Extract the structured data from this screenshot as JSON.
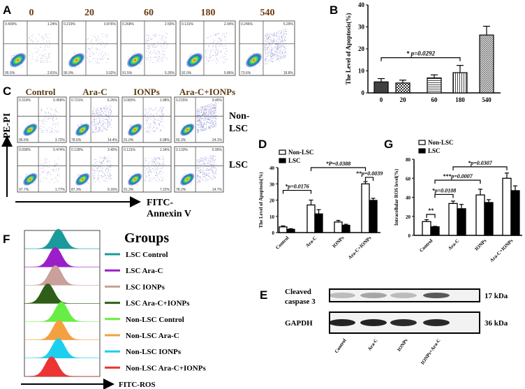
{
  "panel_labels": {
    "a": "A",
    "b": "B",
    "c": "C",
    "d": "D",
    "e": "E",
    "f": "F",
    "g": "G"
  },
  "panel_a": {
    "timepoints": [
      "0",
      "20",
      "60",
      "180",
      "540"
    ],
    "quadrants": [
      [
        "0.409%",
        "1.24%",
        "95.5%",
        "2.81%"
      ],
      [
        "0.219%",
        "0.876%",
        "95.9%",
        "3.02%"
      ],
      [
        "0.268%",
        "2.59%",
        "91.5%",
        "5.26%"
      ],
      [
        "0.131%",
        "2.04%",
        "92.0%",
        "5.86%"
      ],
      [
        "0.246%",
        "5.29%",
        "73.6%",
        "18.8%"
      ]
    ]
  },
  "panel_c": {
    "groups": [
      "Control",
      "Ara-C",
      "IONPs",
      "Ara-C+IONPs"
    ],
    "row_labels": [
      [
        "Non-",
        "LSC"
      ],
      [
        "LSC"
      ]
    ],
    "y_axis_label": "PE-PI",
    "x_axis_label": [
      "FITC-",
      "Annexin V"
    ],
    "quadrants": [
      [
        [
          "0.319%",
          "0.458%",
          "95.5%",
          "3.72%"
        ],
        [
          "0.721%",
          "6.26%",
          "78.6%",
          "14.4%"
        ],
        [
          "0.083%",
          "1.98%",
          "91.0%",
          "6.98%"
        ],
        [
          "0.215%",
          "9.45%",
          "66.3%",
          "24.1%"
        ]
      ],
      [
        [
          "0.099%",
          "0.474%",
          "97.7%",
          "1.77%"
        ],
        [
          "0.139%",
          "3.45%",
          "87.3%",
          "9.16%"
        ],
        [
          "0.131%",
          "1.34%",
          "91.3%",
          "7.22%"
        ],
        [
          "0.133%",
          "6.95%",
          "78.2%",
          "14.7%"
        ]
      ]
    ]
  },
  "panel_e": {
    "rows": [
      {
        "label": [
          "Cleaved",
          "caspase 3"
        ],
        "size": "17 kDa",
        "intensity": [
          0.25,
          0.35,
          0.25,
          0.7
        ]
      },
      {
        "label": [
          "GAPDH"
        ],
        "size": "36 kDa",
        "intensity": [
          0.95,
          0.95,
          0.92,
          0.93
        ]
      }
    ],
    "lanes": [
      "Control",
      "Ara-C",
      "IONPs",
      "IONPs+Ara-C"
    ]
  },
  "panel_f": {
    "legend_title": "Groups",
    "x_axis_label": "FITC-ROS",
    "groups": [
      {
        "name": "LSC Control",
        "color": "#1a9a9a",
        "peak": 0.45
      },
      {
        "name": "LSC Ara-C",
        "color": "#9b1fc8",
        "peak": 0.41
      },
      {
        "name": "LSC IONPs",
        "color": "#c9a09a",
        "peak": 0.41
      },
      {
        "name": "LSC Ara-C+IONPs",
        "color": "#2e5e18",
        "peak": 0.31
      },
      {
        "name": "Non-LSC Control",
        "color": "#66ee44",
        "peak": 0.49
      },
      {
        "name": "Non-LSC Ara-C",
        "color": "#f5a040",
        "peak": 0.46
      },
      {
        "name": "Non-LSC IONPs",
        "color": "#1ccfef",
        "peak": 0.45
      },
      {
        "name": "Non-LSC Ara-C+IONPs",
        "color": "#ee3333",
        "peak": 0.36
      }
    ]
  },
  "chart_data": [
    {
      "id": "B",
      "type": "bar",
      "categories": [
        "0",
        "20",
        "60",
        "180",
        "540"
      ],
      "values": [
        5.0,
        4.5,
        6.8,
        9.2,
        26.3
      ],
      "error": [
        1.5,
        1.3,
        1.4,
        3.3,
        4.0
      ],
      "ylabel": "The Level of Apoptosis(%)",
      "xlabel": "",
      "ylim": [
        0,
        40
      ],
      "yticks": [
        "0",
        "10",
        "20",
        "30",
        "40"
      ],
      "annotations": [
        {
          "from": "0",
          "to": "180",
          "text": "* p=0.0292",
          "y": 16
        }
      ]
    },
    {
      "id": "D",
      "type": "bar",
      "categories": [
        "Control",
        "Ara-C",
        "IONPs",
        "Ara-C+IONPs"
      ],
      "series": [
        {
          "name": "Non-LSC",
          "values": [
            3.5,
            17.0,
            6.5,
            30.0
          ],
          "error": [
            0.6,
            3.0,
            1.0,
            1.4
          ]
        },
        {
          "name": "LSC",
          "values": [
            2.0,
            11.5,
            4.5,
            19.8
          ],
          "error": [
            0.4,
            2.6,
            0.6,
            1.3
          ]
        }
      ],
      "ylabel": "The Level of Apoptosis(%)",
      "ylim": [
        0,
        40
      ],
      "yticks": [
        "0",
        "10",
        "20",
        "30",
        "40"
      ],
      "annotations": [
        {
          "text": "*P=0.0388",
          "from": [
            1,
            0
          ],
          "to": [
            3,
            0
          ],
          "y": 40
        },
        {
          "text": "**p=0.0039",
          "from": [
            3,
            0
          ],
          "to": [
            3,
            1
          ],
          "y": 34
        },
        {
          "text": "*p=0.0176",
          "from": [
            0,
            0
          ],
          "to": [
            1,
            0
          ],
          "y": 26
        }
      ]
    },
    {
      "id": "G",
      "type": "bar",
      "categories": [
        "Control",
        "Ara-C",
        "IONPs",
        "Ara-C+IONPs"
      ],
      "series": [
        {
          "name": "Non-LSC",
          "values": [
            14.5,
            33.5,
            42.5,
            60.0
          ],
          "error": [
            2.0,
            2.5,
            6.0,
            5.5
          ]
        },
        {
          "name": "LSC",
          "values": [
            9.0,
            28.0,
            34.5,
            47.0
          ],
          "error": [
            0.5,
            4.5,
            3.0,
            5.0
          ]
        }
      ],
      "ylabel": "Intracellular ROS level(%)",
      "ylim": [
        0,
        80
      ],
      "yticks": [
        "0",
        "20",
        "40",
        "60",
        "80"
      ],
      "annotations": [
        {
          "text": "*p=0.0307",
          "from": [
            1,
            0
          ],
          "to": [
            3,
            0
          ],
          "y": 72
        },
        {
          "text": "***p=0.0007",
          "from": [
            0,
            1
          ],
          "to": [
            2,
            0
          ],
          "y": 58
        },
        {
          "text": "*p=0.0108",
          "from": [
            0,
            1
          ],
          "to": [
            1,
            0
          ],
          "y": 43
        },
        {
          "text": "**",
          "from": [
            0,
            0
          ],
          "to": [
            0,
            1
          ],
          "y": 22
        }
      ]
    }
  ]
}
